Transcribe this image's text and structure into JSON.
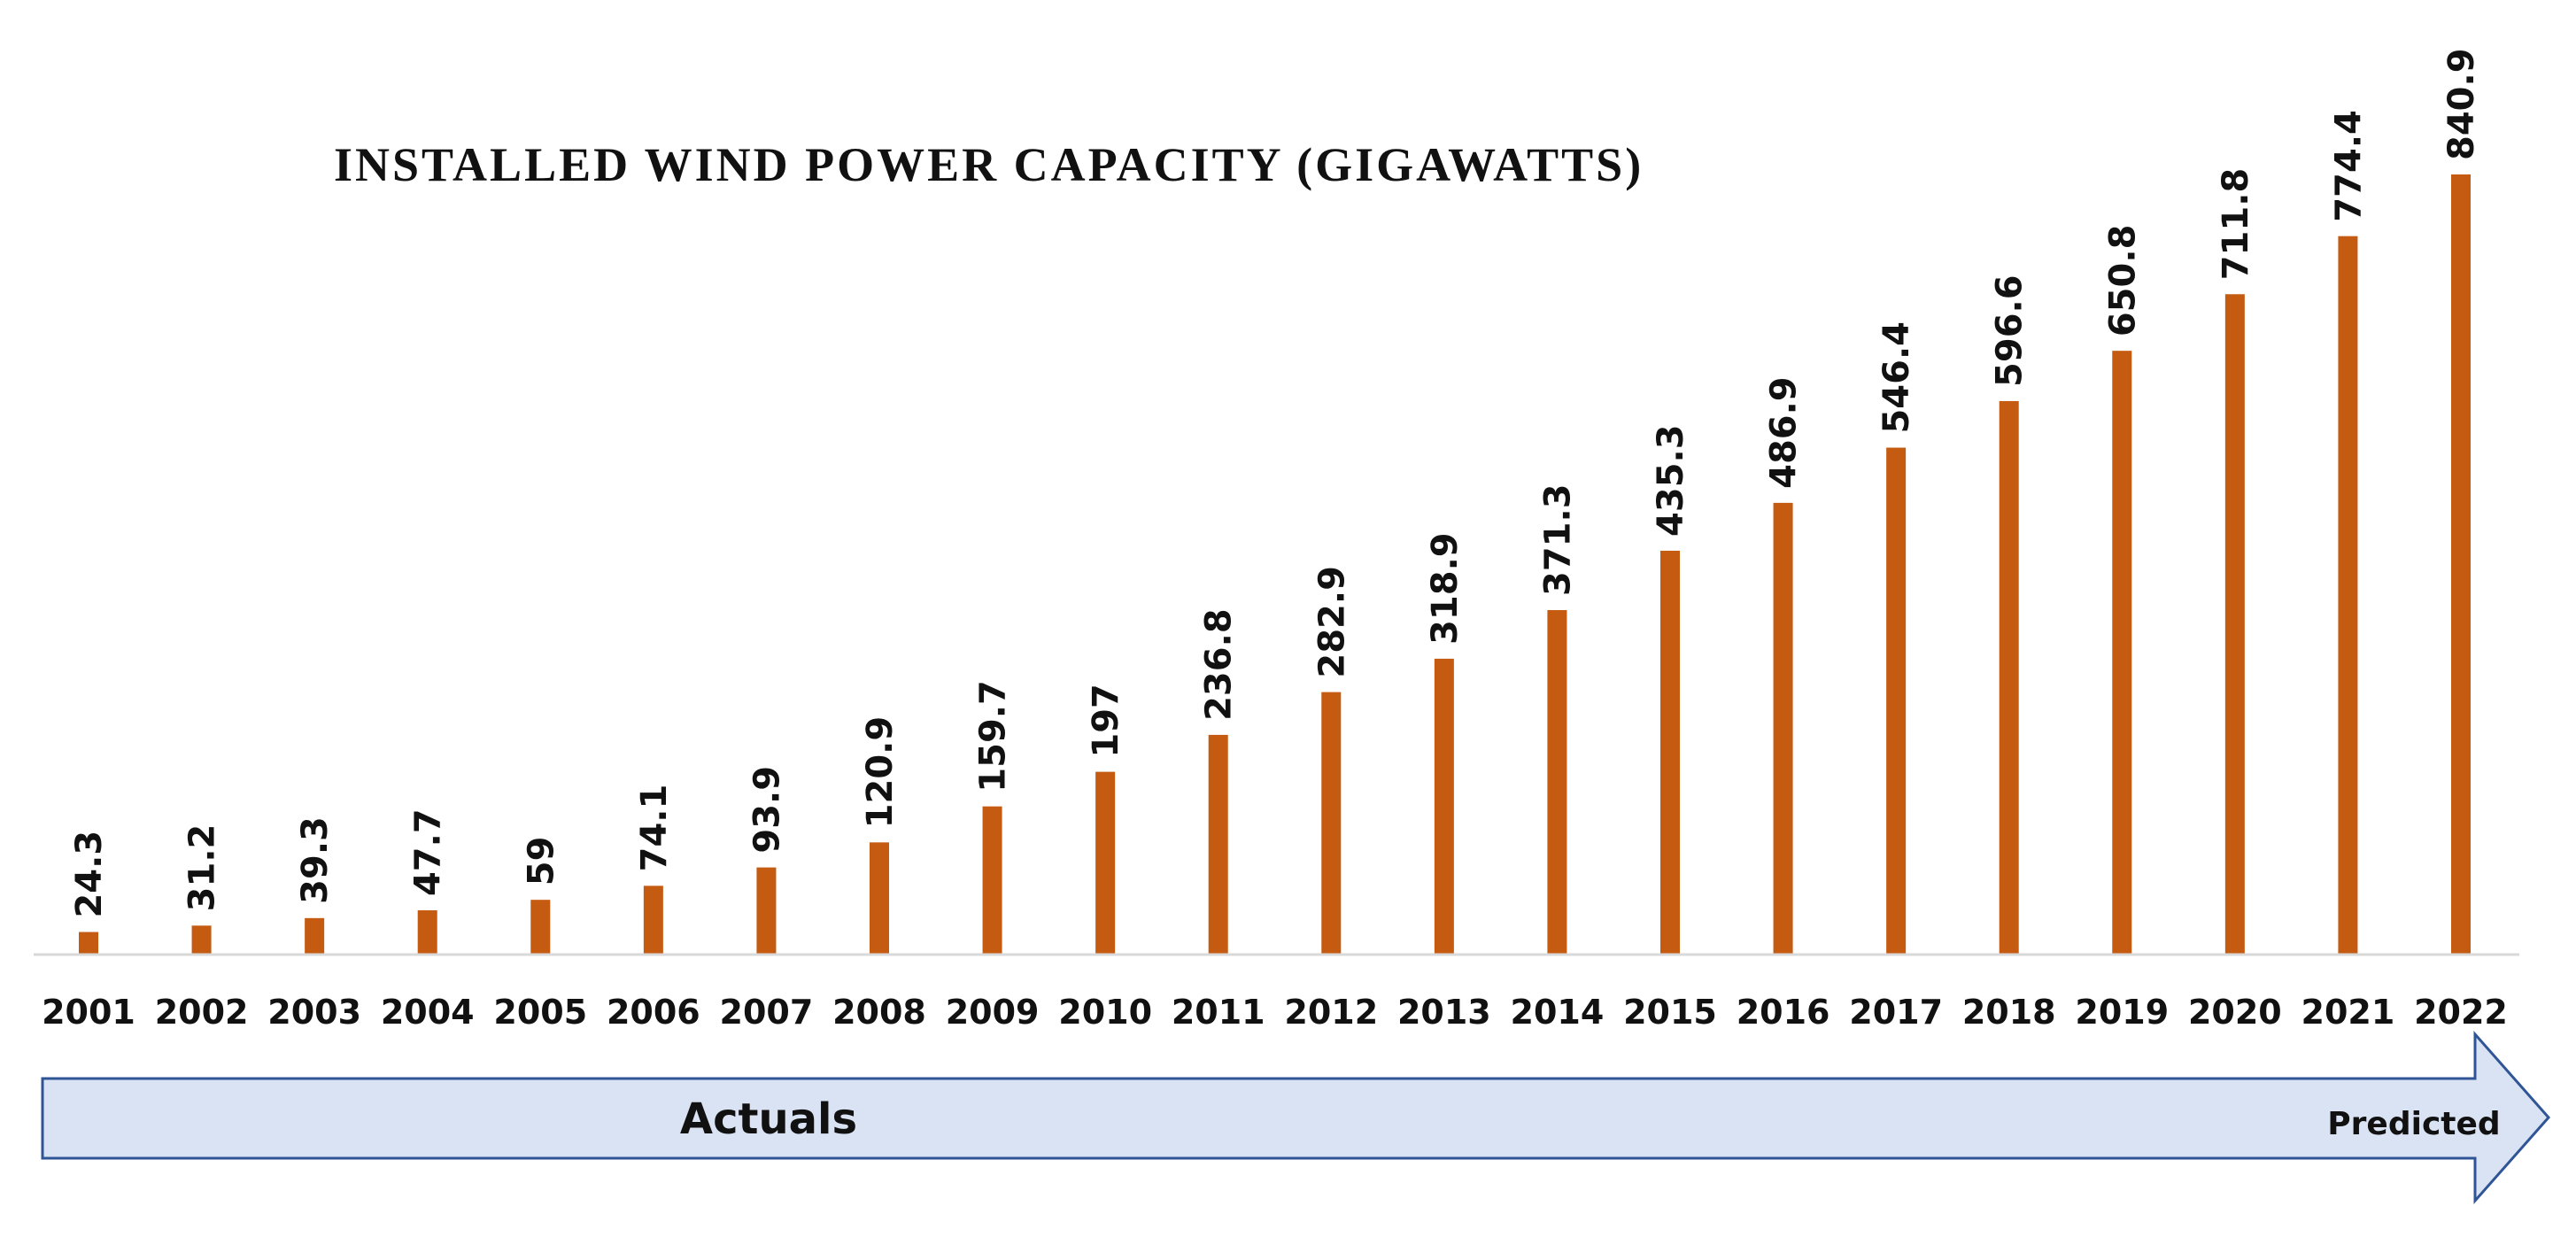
{
  "chart_data": {
    "type": "bar",
    "title": "INSTALLED WIND POWER CAPACITY (GIGAWATTS)",
    "xlabel": "",
    "ylabel": "",
    "ylim": [
      0,
      900
    ],
    "grid": false,
    "legend": "none",
    "categories": [
      "2001",
      "2002",
      "2003",
      "2004",
      "2005",
      "2006",
      "2007",
      "2008",
      "2009",
      "2010",
      "2011",
      "2012",
      "2013",
      "2014",
      "2015",
      "2016",
      "2017",
      "2018",
      "2019",
      "2020",
      "2021",
      "2022"
    ],
    "values": [
      24.3,
      31.2,
      39.3,
      47.7,
      59,
      74.1,
      93.9,
      120.9,
      159.7,
      197,
      236.8,
      282.9,
      318.9,
      371.3,
      435.3,
      486.9,
      546.4,
      596.6,
      650.8,
      711.8,
      774.4,
      840.9
    ],
    "bar_color": "#c55a11",
    "axis_color": "#d9d9d9",
    "annotation_arrow": {
      "main_label": "Actuals",
      "end_label": "Predicted",
      "fill_color": "#dae3f3",
      "stroke_color": "#2f5597"
    }
  }
}
